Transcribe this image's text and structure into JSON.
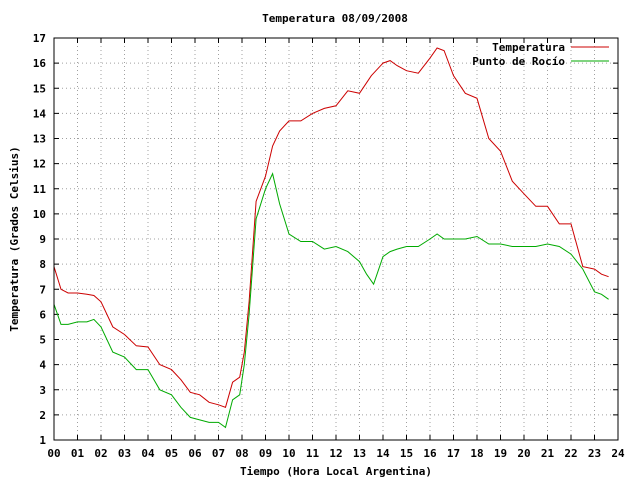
{
  "chart_data": {
    "type": "line",
    "title": "Temperatura 08/09/2008",
    "xlabel": "Tiempo (Hora Local Argentina)",
    "ylabel": "Temperatura (Grados Celsius)",
    "xlim": [
      0,
      24
    ],
    "ylim": [
      1,
      17
    ],
    "x_ticks": [
      "00",
      "01",
      "02",
      "03",
      "04",
      "05",
      "06",
      "07",
      "08",
      "09",
      "10",
      "11",
      "12",
      "13",
      "14",
      "15",
      "16",
      "17",
      "18",
      "19",
      "20",
      "21",
      "22",
      "23",
      "24"
    ],
    "y_ticks": [
      "1",
      "2",
      "3",
      "4",
      "5",
      "6",
      "7",
      "8",
      "9",
      "10",
      "11",
      "12",
      "13",
      "14",
      "15",
      "16",
      "17"
    ],
    "grid": true,
    "legend_position": "top-right",
    "series": [
      {
        "name": "Temperatura",
        "color": "#cc0000",
        "x": [
          0.0,
          0.3,
          0.6,
          1.0,
          1.4,
          1.7,
          2.0,
          2.5,
          3.0,
          3.5,
          4.0,
          4.5,
          5.0,
          5.4,
          5.8,
          6.2,
          6.6,
          7.0,
          7.3,
          7.6,
          7.9,
          8.1,
          8.3,
          8.6,
          9.0,
          9.3,
          9.6,
          10.0,
          10.5,
          11.0,
          11.5,
          12.0,
          12.5,
          13.0,
          13.5,
          14.0,
          14.3,
          14.6,
          15.0,
          15.5,
          16.0,
          16.3,
          16.6,
          17.0,
          17.5,
          18.0,
          18.5,
          19.0,
          19.5,
          20.0,
          20.5,
          21.0,
          21.5,
          22.0,
          22.5,
          23.0,
          23.3,
          23.6
        ],
        "y": [
          7.9,
          7.0,
          6.85,
          6.85,
          6.8,
          6.75,
          6.5,
          5.5,
          5.2,
          4.75,
          4.7,
          4.0,
          3.8,
          3.4,
          2.9,
          2.8,
          2.5,
          2.4,
          2.3,
          3.3,
          3.5,
          4.5,
          6.5,
          10.5,
          11.5,
          12.7,
          13.3,
          13.7,
          13.7,
          14.0,
          14.2,
          14.3,
          14.9,
          14.8,
          15.5,
          16.0,
          16.1,
          15.9,
          15.7,
          15.6,
          16.2,
          16.6,
          16.5,
          15.5,
          14.8,
          14.6,
          13.0,
          12.5,
          11.3,
          10.8,
          10.3,
          10.3,
          9.6,
          9.6,
          7.9,
          7.8,
          7.6,
          7.5
        ]
      },
      {
        "name": "Punto de Rocío",
        "color": "#00aa00",
        "x": [
          0.0,
          0.3,
          0.6,
          1.0,
          1.4,
          1.7,
          2.0,
          2.5,
          3.0,
          3.5,
          4.0,
          4.5,
          5.0,
          5.4,
          5.8,
          6.2,
          6.6,
          7.0,
          7.3,
          7.6,
          7.9,
          8.1,
          8.3,
          8.6,
          9.0,
          9.3,
          9.6,
          10.0,
          10.5,
          11.0,
          11.5,
          12.0,
          12.5,
          13.0,
          13.3,
          13.6,
          14.0,
          14.3,
          14.6,
          15.0,
          15.5,
          16.0,
          16.3,
          16.6,
          17.0,
          17.5,
          18.0,
          18.5,
          19.0,
          19.5,
          20.0,
          20.5,
          21.0,
          21.5,
          22.0,
          22.5,
          23.0,
          23.3,
          23.6
        ],
        "y": [
          6.4,
          5.6,
          5.6,
          5.7,
          5.7,
          5.8,
          5.5,
          4.5,
          4.3,
          3.8,
          3.8,
          3.0,
          2.8,
          2.3,
          1.9,
          1.8,
          1.7,
          1.7,
          1.5,
          2.6,
          2.8,
          4.0,
          6.0,
          9.8,
          11.0,
          11.6,
          10.4,
          9.2,
          8.9,
          8.9,
          8.6,
          8.7,
          8.5,
          8.1,
          7.6,
          7.2,
          8.3,
          8.5,
          8.6,
          8.7,
          8.7,
          9.0,
          9.2,
          9.0,
          9.0,
          9.0,
          9.1,
          8.8,
          8.8,
          8.7,
          8.7,
          8.7,
          8.8,
          8.7,
          8.4,
          7.8,
          6.9,
          6.8,
          6.6
        ]
      }
    ]
  }
}
